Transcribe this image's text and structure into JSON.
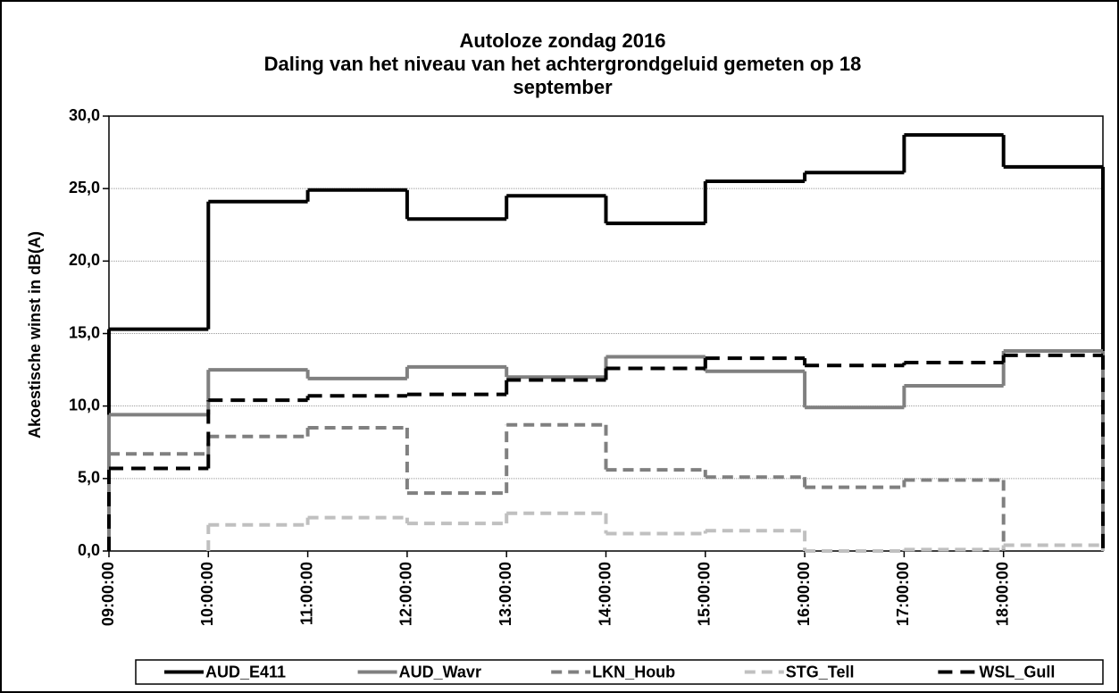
{
  "chart_data": {
    "type": "step-line",
    "title": "Autoloze zondag 2016",
    "subtitle": "Daling van het niveau van het achtergrondgeluid gemeten op 18 september",
    "y_label": "Akoestische winst in dB(A)",
    "categories": [
      "09:00:00",
      "10:00:00",
      "11:00:00",
      "12:00:00",
      "13:00:00",
      "14:00:00",
      "15:00:00",
      "16:00:00",
      "17:00:00",
      "18:00:00"
    ],
    "series": [
      {
        "name": "AUD_E411",
        "color": "#000000",
        "dashed": false,
        "values": [
          15.3,
          24.1,
          24.9,
          22.9,
          24.5,
          22.6,
          25.5,
          26.1,
          28.7,
          26.5
        ]
      },
      {
        "name": "AUD_Wavr",
        "color": "#808080",
        "dashed": false,
        "values": [
          9.4,
          12.5,
          11.9,
          12.7,
          12.0,
          13.4,
          12.4,
          9.9,
          11.4,
          13.8
        ]
      },
      {
        "name": "LKN_Houb",
        "color": "#808080",
        "dashed": true,
        "values": [
          6.7,
          7.9,
          8.5,
          4.0,
          8.7,
          5.6,
          5.1,
          4.4,
          4.9,
          null
        ]
      },
      {
        "name": "STG_Tell",
        "color": "#c0c0c0",
        "dashed": true,
        "values": [
          null,
          1.8,
          2.3,
          1.9,
          2.6,
          1.2,
          1.4,
          0.0,
          0.1,
          0.4
        ]
      },
      {
        "name": "WSL_Gull",
        "color": "#000000",
        "dashed": true,
        "values": [
          5.7,
          10.4,
          10.7,
          10.8,
          11.8,
          12.6,
          13.3,
          12.8,
          13.0,
          13.5
        ]
      }
    ],
    "ylim": [
      0,
      30
    ],
    "yticks": [
      {
        "value": 0,
        "label": "0,0"
      },
      {
        "value": 5,
        "label": "5,0"
      },
      {
        "value": 10,
        "label": "10,0"
      },
      {
        "value": 15,
        "label": "15,0"
      },
      {
        "value": 20,
        "label": "20,0"
      },
      {
        "value": 25,
        "label": "25,0"
      },
      {
        "value": 30,
        "label": "30,0"
      }
    ],
    "grid": true,
    "legend": "bottom"
  }
}
